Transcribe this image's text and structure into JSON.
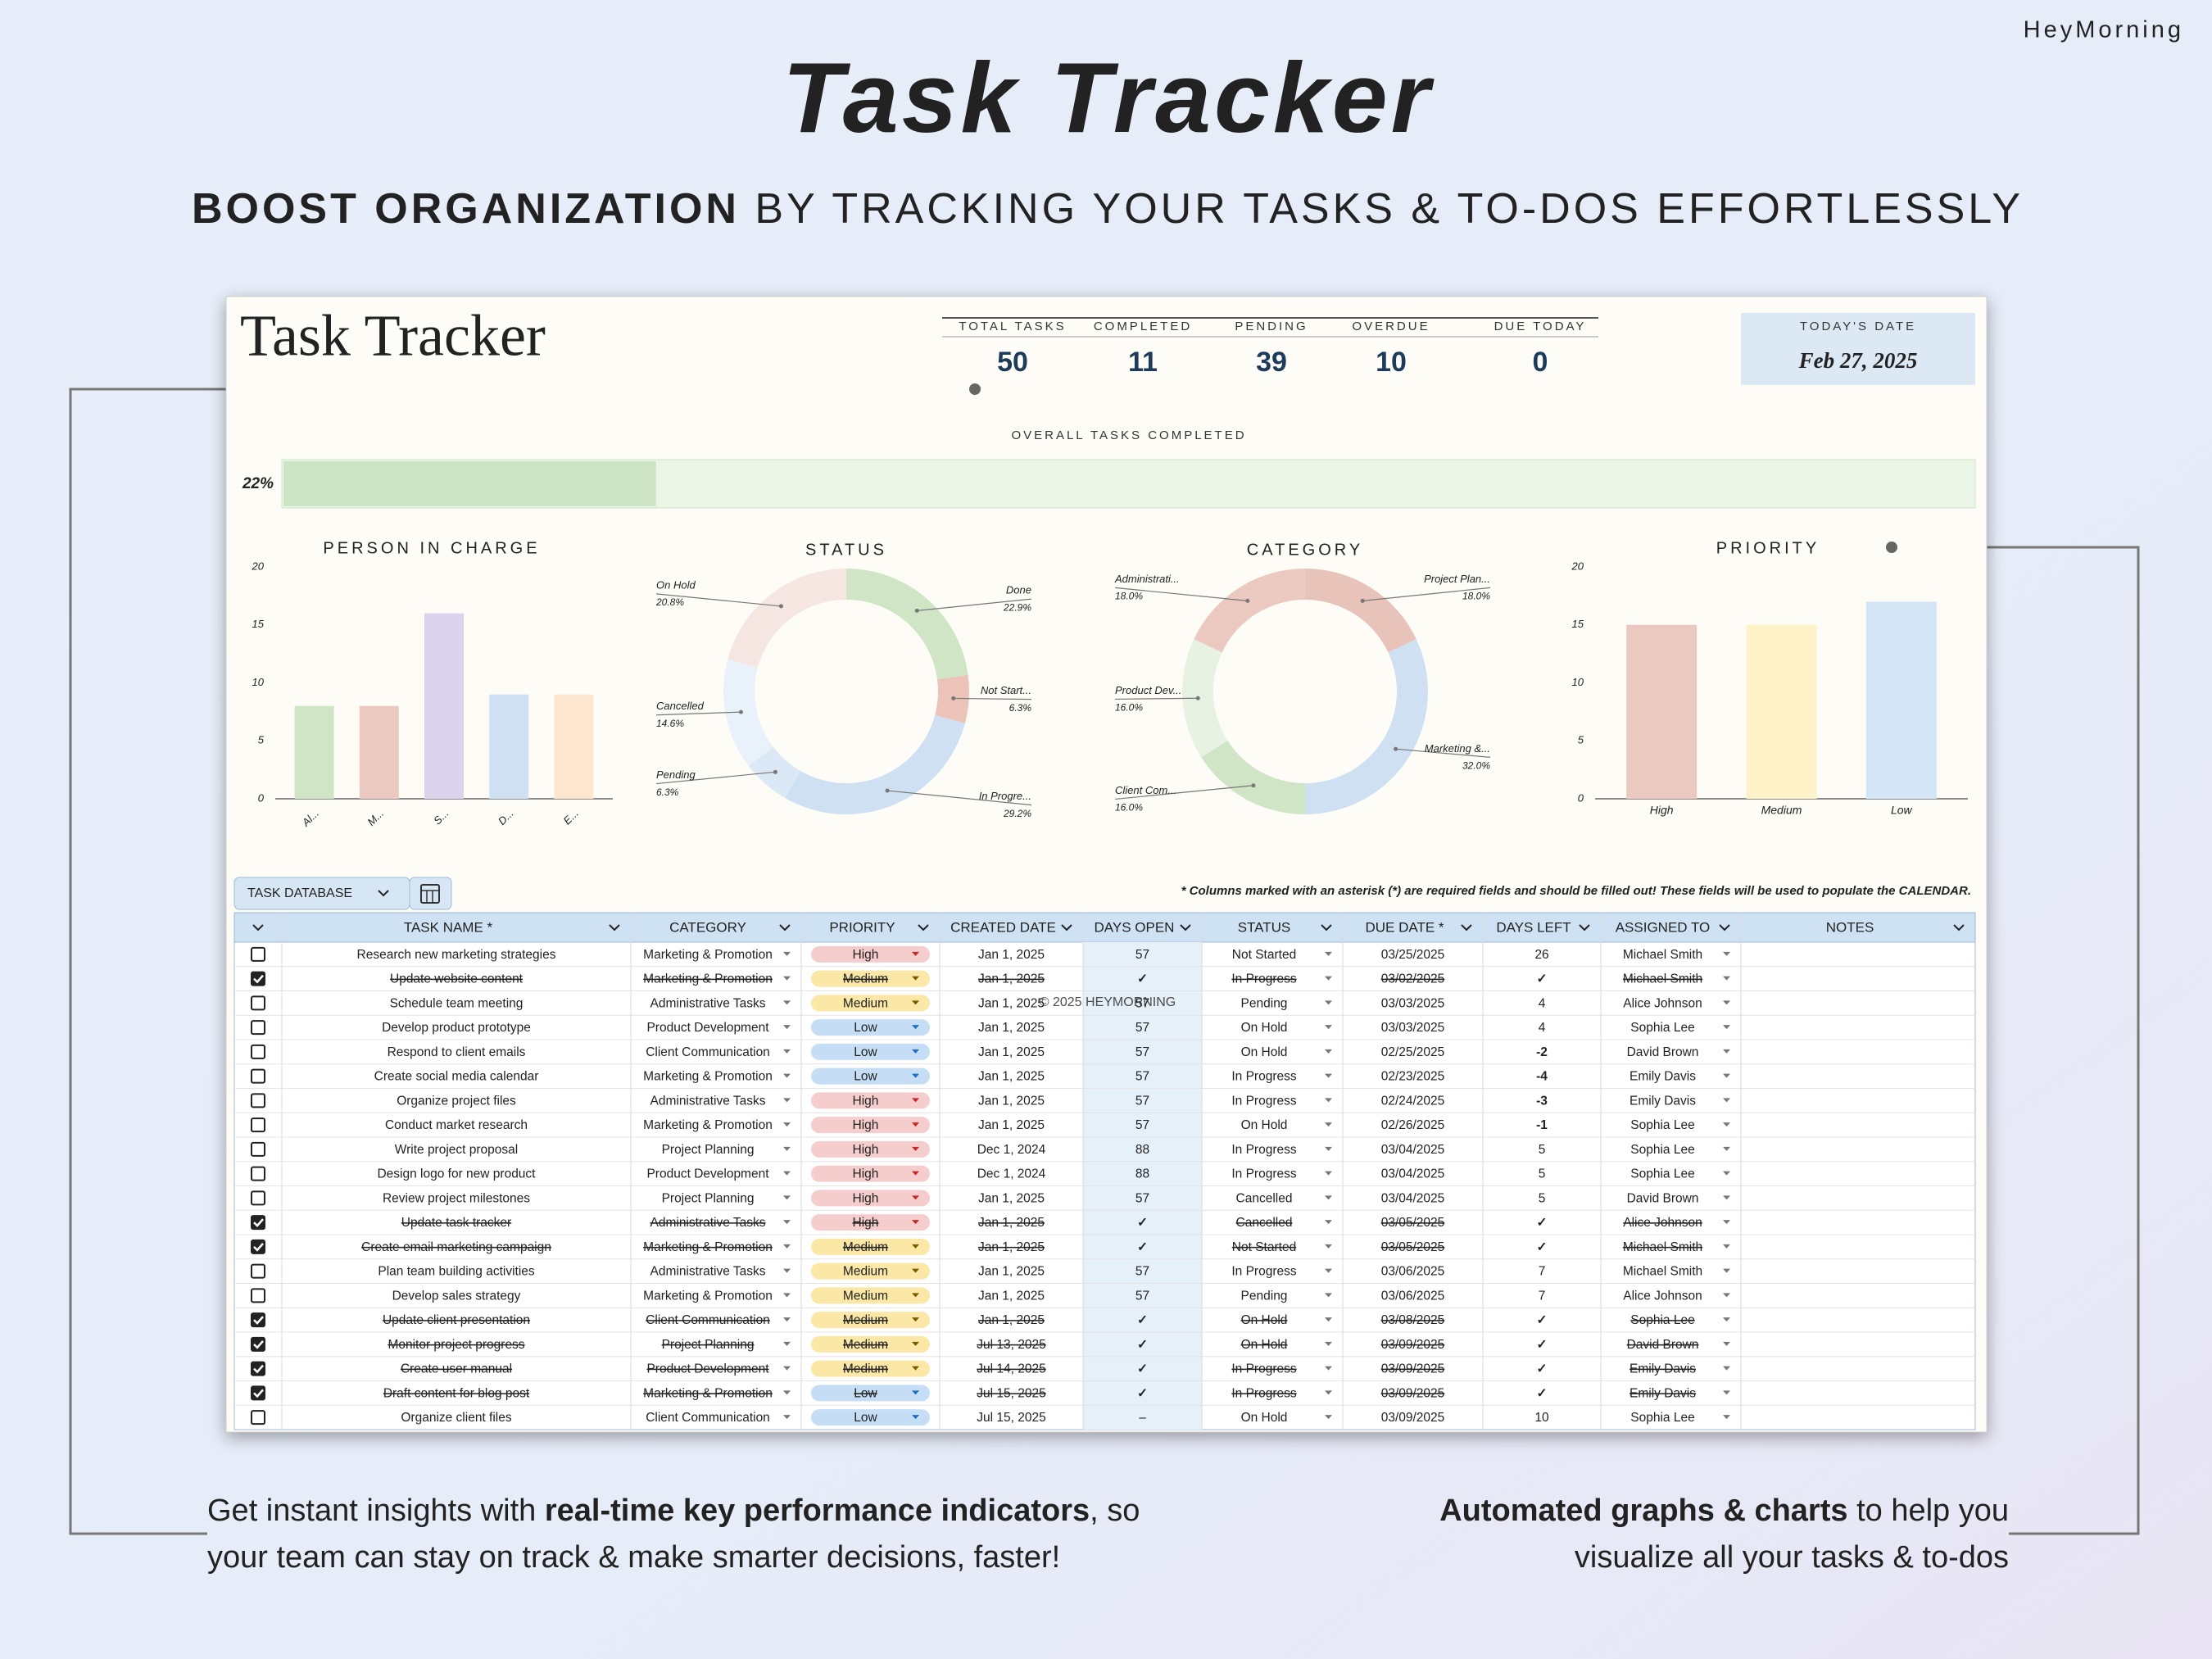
{
  "brand": "HeyMorning",
  "header": {
    "title": "Task Tracker",
    "subtitle_bold": "BOOST ORGANIZATION",
    "subtitle_rest": "BY TRACKING YOUR TASKS & TO-DOS EFFORTLESSLY"
  },
  "sheet_title": "Task Tracker",
  "kpis": [
    {
      "label": "TOTAL TASKS",
      "value": 50
    },
    {
      "label": "COMPLETED",
      "value": 11
    },
    {
      "label": "PENDING",
      "value": 39
    },
    {
      "label": "OVERDUE",
      "value": 10
    },
    {
      "label": "DUE TODAY",
      "value": 0
    }
  ],
  "today": {
    "label": "TODAY'S DATE",
    "value": "Feb 27, 2025"
  },
  "progress": {
    "label": "OVERALL TASKS COMPLETED",
    "value": 22,
    "value_label": "22%",
    "xlim": [
      0,
      100
    ]
  },
  "chart_data": [
    {
      "type": "bar",
      "title": "PERSON IN CHARGE",
      "categories": [
        "Al...",
        "M...",
        "S...",
        "D...",
        "E..."
      ],
      "values": [
        8,
        8,
        16,
        9,
        9
      ],
      "colors": [
        "#cfe5c6",
        "#ecc9c0",
        "#dcd3ec",
        "#cfe0f2",
        "#fde6cf"
      ],
      "ylim": [
        0,
        20
      ],
      "yticks": [
        0,
        5,
        10,
        15,
        20
      ]
    },
    {
      "type": "donut",
      "title": "STATUS",
      "categories": [
        "Done",
        "Not Start...",
        "In Progre...",
        "Pending",
        "Cancelled",
        "On Hold"
      ],
      "values": [
        22.9,
        6.3,
        29.2,
        6.3,
        14.6,
        20.8
      ],
      "value_labels": [
        "22.9%",
        "6.3%",
        "29.2%",
        "6.3%",
        "14.6%",
        "20.8%"
      ],
      "colors": [
        "#cfe5c6",
        "#ecc3b9",
        "#cfe0f2",
        "#dbe8f5",
        "#e9f2fa",
        "#f6e6e1"
      ]
    },
    {
      "type": "donut",
      "title": "CATEGORY",
      "categories": [
        "Project Plan...",
        "Marketing &...",
        "Client Com...",
        "Product Dev...",
        "Administrati..."
      ],
      "values": [
        18.0,
        32.0,
        16.0,
        16.0,
        18.0
      ],
      "value_labels": [
        "18.0%",
        "32.0%",
        "16.0%",
        "16.0%",
        "18.0%"
      ],
      "colors": [
        "#e8c3ba",
        "#cfe0f2",
        "#cfe5c6",
        "#e7f2e3",
        "#ecc9c0"
      ]
    },
    {
      "type": "bar",
      "title": "PRIORITY",
      "categories": [
        "High",
        "Medium",
        "Low"
      ],
      "values": [
        15,
        15,
        17
      ],
      "colors": [
        "#ecc9c0",
        "#fef2c9",
        "#d4e5f5"
      ],
      "ylim": [
        0,
        20
      ],
      "yticks": [
        0,
        5,
        10,
        15,
        20
      ]
    }
  ],
  "table": {
    "tab": "TASK DATABASE",
    "note": "* Columns marked with an asterisk (*) are required fields and should be filled out! These fields will be used to populate the CALENDAR.",
    "watermark": "© 2025 HEYMORNING",
    "pill_colors": [
      {
        "bg": "#f6cdcd",
        "fg": "#c62828"
      },
      {
        "bg": "#fce8a6",
        "fg": "#7a5a00"
      },
      {
        "bg": "#c6def5",
        "fg": "#1f6fc0"
      }
    ],
    "columns": [
      "TASK NAME *",
      "CATEGORY",
      "PRIORITY",
      "CREATED DATE",
      "DAYS OPEN",
      "STATUS",
      "DUE DATE *",
      "DAYS LEFT",
      "ASSIGNED TO",
      "NOTES"
    ],
    "rows": [
      {
        "done": false,
        "cells": [
          "Research new marketing strategies",
          "Marketing & Promotion",
          "High",
          "Jan 1, 2025",
          57,
          "Not Started",
          "03/25/2025",
          26,
          "Michael Smith"
        ]
      },
      {
        "done": true,
        "cells": [
          "Update website content",
          "Marketing & Promotion",
          "Medium",
          "Jan 1, 2025",
          "✓",
          "In Progress",
          "03/02/2025",
          "✓",
          "Michael Smith"
        ]
      },
      {
        "done": false,
        "cells": [
          "Schedule team meeting",
          "Administrative Tasks",
          "Medium",
          "Jan 1, 2025",
          57,
          "Pending",
          "03/03/2025",
          4,
          "Alice Johnson"
        ]
      },
      {
        "done": false,
        "cells": [
          "Develop product prototype",
          "Product Development",
          "Low",
          "Jan 1, 2025",
          57,
          "On Hold",
          "03/03/2025",
          4,
          "Sophia Lee"
        ]
      },
      {
        "done": false,
        "cells": [
          "Respond to client emails",
          "Client Communication",
          "Low",
          "Jan 1, 2025",
          57,
          "On Hold",
          "02/25/2025",
          -2,
          "David Brown"
        ]
      },
      {
        "done": false,
        "cells": [
          "Create social media calendar",
          "Marketing & Promotion",
          "Low",
          "Jan 1, 2025",
          57,
          "In Progress",
          "02/23/2025",
          -4,
          "Emily Davis"
        ]
      },
      {
        "done": false,
        "cells": [
          "Organize project files",
          "Administrative Tasks",
          "High",
          "Jan 1, 2025",
          57,
          "In Progress",
          "02/24/2025",
          -3,
          "Emily Davis"
        ]
      },
      {
        "done": false,
        "cells": [
          "Conduct market research",
          "Marketing & Promotion",
          "High",
          "Jan 1, 2025",
          57,
          "On Hold",
          "02/26/2025",
          -1,
          "Sophia Lee"
        ]
      },
      {
        "done": false,
        "cells": [
          "Write project proposal",
          "Project Planning",
          "High",
          "Dec 1, 2024",
          88,
          "In Progress",
          "03/04/2025",
          5,
          "Sophia Lee"
        ]
      },
      {
        "done": false,
        "cells": [
          "Design logo for new product",
          "Product Development",
          "High",
          "Dec 1, 2024",
          88,
          "In Progress",
          "03/04/2025",
          5,
          "Sophia Lee"
        ]
      },
      {
        "done": false,
        "cells": [
          "Review project milestones",
          "Project Planning",
          "High",
          "Jan 1, 2025",
          57,
          "Cancelled",
          "03/04/2025",
          5,
          "David Brown"
        ]
      },
      {
        "done": true,
        "cells": [
          "Update task tracker",
          "Administrative Tasks",
          "High",
          "Jan 1, 2025",
          "✓",
          "Cancelled",
          "03/05/2025",
          "✓",
          "Alice Johnson"
        ]
      },
      {
        "done": true,
        "cells": [
          "Create email marketing campaign",
          "Marketing & Promotion",
          "Medium",
          "Jan 1, 2025",
          "✓",
          "Not Started",
          "03/05/2025",
          "✓",
          "Michael Smith"
        ]
      },
      {
        "done": false,
        "cells": [
          "Plan team building activities",
          "Administrative Tasks",
          "Medium",
          "Jan 1, 2025",
          57,
          "In Progress",
          "03/06/2025",
          7,
          "Michael Smith"
        ]
      },
      {
        "done": false,
        "cells": [
          "Develop sales strategy",
          "Marketing & Promotion",
          "Medium",
          "Jan 1, 2025",
          57,
          "Pending",
          "03/06/2025",
          7,
          "Alice Johnson"
        ]
      },
      {
        "done": true,
        "cells": [
          "Update client presentation",
          "Client Communication",
          "Medium",
          "Jan 1, 2025",
          "✓",
          "On Hold",
          "03/08/2025",
          "✓",
          "Sophia Lee"
        ]
      },
      {
        "done": true,
        "cells": [
          "Monitor project progress",
          "Project Planning",
          "Medium",
          "Jul 13, 2025",
          "✓",
          "On Hold",
          "03/09/2025",
          "✓",
          "David Brown"
        ]
      },
      {
        "done": true,
        "cells": [
          "Create user manual",
          "Product Development",
          "Medium",
          "Jul 14, 2025",
          "✓",
          "In Progress",
          "03/09/2025",
          "✓",
          "Emily Davis"
        ]
      },
      {
        "done": true,
        "cells": [
          "Draft content for blog post",
          "Marketing & Promotion",
          "Low",
          "Jul 15, 2025",
          "✓",
          "In Progress",
          "03/09/2025",
          "✓",
          "Emily Davis"
        ]
      },
      {
        "done": false,
        "cells": [
          "Organize client files",
          "Client Communication",
          "Low",
          "Jul 15, 2025",
          "–",
          "On Hold",
          "03/09/2025",
          10,
          "Sophia Lee"
        ]
      }
    ]
  },
  "footer": {
    "left": {
      "before": "Get instant insights with",
      "bold": "real-time key performance indicators",
      "after": ", so",
      "line2": "your team can stay on track & make smarter decisions, faster!"
    },
    "right": {
      "bold": "Automated graphs & charts",
      "after": "to help you",
      "line2": "visualize all your tasks & to-dos"
    }
  }
}
